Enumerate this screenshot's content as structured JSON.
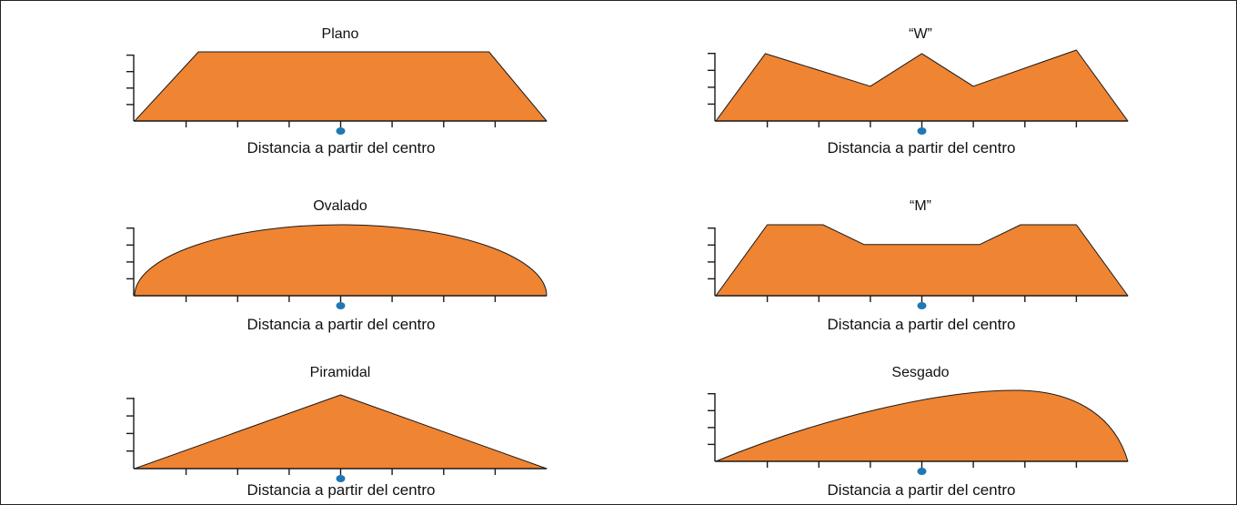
{
  "figure": {
    "fill_color": "#EF8433",
    "outline_color": "#1a1a1a",
    "center_marker_color": "#1F77B4",
    "panels": [
      {
        "id": "plano",
        "title": "Plano",
        "xlabel": "Distancia a partir del centro",
        "shape": "polygon",
        "profile": [
          [
            0,
            0
          ],
          [
            0.155,
            1
          ],
          [
            0.86,
            1
          ],
          [
            1,
            0
          ]
        ]
      },
      {
        "id": "w",
        "title": "“W”",
        "xlabel": "Distancia a partir del centro",
        "shape": "polygon",
        "profile": [
          [
            0,
            0
          ],
          [
            0.12,
            0.95
          ],
          [
            0.375,
            0.49
          ],
          [
            0.5,
            0.95
          ],
          [
            0.625,
            0.49
          ],
          [
            0.875,
            1
          ],
          [
            1,
            0
          ]
        ]
      },
      {
        "id": "ovalado",
        "title": "Ovalado",
        "xlabel": "Distancia a partir del centro",
        "shape": "oval"
      },
      {
        "id": "m",
        "title": "“M”",
        "xlabel": "Distancia a partir del centro",
        "shape": "polygon",
        "profile": [
          [
            0,
            0
          ],
          [
            0.125,
            1
          ],
          [
            0.26,
            1
          ],
          [
            0.36,
            0.72
          ],
          [
            0.64,
            0.72
          ],
          [
            0.74,
            1
          ],
          [
            0.875,
            1
          ],
          [
            1,
            0
          ]
        ]
      },
      {
        "id": "piramidal",
        "title": "Piramidal",
        "xlabel": "Distancia a partir del centro",
        "shape": "polygon",
        "profile": [
          [
            0,
            0
          ],
          [
            0.5,
            1
          ],
          [
            1,
            0
          ]
        ]
      },
      {
        "id": "sesgado",
        "title": "Sesgado",
        "xlabel": "Distancia a partir del centro",
        "shape": "skewed"
      }
    ]
  }
}
